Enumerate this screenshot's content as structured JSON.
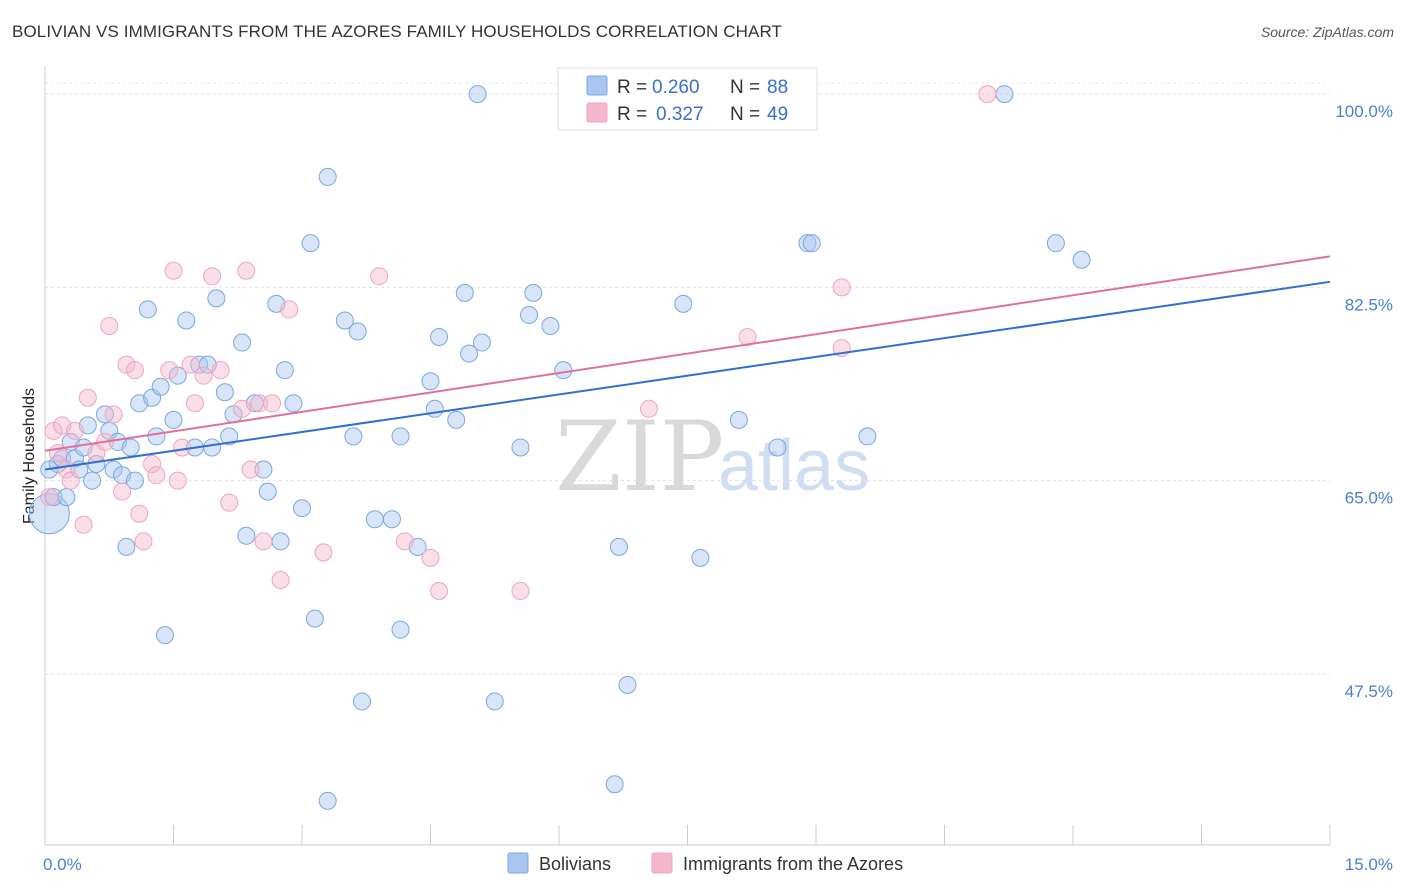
{
  "header": {
    "title": "BOLIVIAN VS IMMIGRANTS FROM THE AZORES FAMILY HOUSEHOLDS CORRELATION CHART",
    "source": "Source: ZipAtlas.com"
  },
  "watermark": {
    "zip": "ZIP",
    "atlas": "atlas"
  },
  "legend": {
    "items": [
      {
        "r_label": "R =",
        "r_value": "0.260",
        "n_label": "N =",
        "n_value": "88",
        "color": "#a9c6f0"
      },
      {
        "r_label": "R =",
        "r_value": "0.327",
        "n_label": "N =",
        "n_value": "49",
        "color": "#f5b8cb"
      }
    ]
  },
  "chart_data": {
    "type": "scatter",
    "title": "BOLIVIAN VS IMMIGRANTS FROM THE AZORES FAMILY HOUSEHOLDS CORRELATION CHART",
    "ylabel": "Family Households",
    "xlabel": "",
    "xlim": [
      0,
      15
    ],
    "ylim": [
      32,
      102
    ],
    "x_tick_labels": [
      "0.0%",
      "15.0%"
    ],
    "y_ticks": [
      47.5,
      65.0,
      82.5,
      100.0
    ],
    "y_tick_labels": [
      "47.5%",
      "65.0%",
      "82.5%",
      "100.0%"
    ],
    "grid": true,
    "legend_position": "top-center",
    "series": [
      {
        "name": "Bolivians",
        "color": "#7aa6e6",
        "line_color": "#2f6fd0",
        "trend": {
          "x": [
            0,
            15
          ],
          "y": [
            66.0,
            83.0
          ]
        },
        "points": [
          [
            0.05,
            62.0
          ],
          [
            0.1,
            63.5
          ],
          [
            0.15,
            66.5
          ],
          [
            0.2,
            67.0
          ],
          [
            0.25,
            63.5
          ],
          [
            0.3,
            68.5
          ],
          [
            0.35,
            67.0
          ],
          [
            0.45,
            68.0
          ],
          [
            0.5,
            70.0
          ],
          [
            0.55,
            65.0
          ],
          [
            0.6,
            66.5
          ],
          [
            0.7,
            71.0
          ],
          [
            0.75,
            69.5
          ],
          [
            0.8,
            66.0
          ],
          [
            0.85,
            68.5
          ],
          [
            0.9,
            65.5
          ],
          [
            0.95,
            59.0
          ],
          [
            1.05,
            65.0
          ],
          [
            1.1,
            72.0
          ],
          [
            1.2,
            80.5
          ],
          [
            1.25,
            72.5
          ],
          [
            1.3,
            69.0
          ],
          [
            1.35,
            73.5
          ],
          [
            1.4,
            51.0
          ],
          [
            1.5,
            70.5
          ],
          [
            1.55,
            74.5
          ],
          [
            1.65,
            79.5
          ],
          [
            1.75,
            68.0
          ],
          [
            1.8,
            75.5
          ],
          [
            1.9,
            75.5
          ],
          [
            1.95,
            68.0
          ],
          [
            2.0,
            81.5
          ],
          [
            2.1,
            73.0
          ],
          [
            2.15,
            69.0
          ],
          [
            2.2,
            71.0
          ],
          [
            2.3,
            77.5
          ],
          [
            2.35,
            60.0
          ],
          [
            2.45,
            72.0
          ],
          [
            2.55,
            66.0
          ],
          [
            2.6,
            64.0
          ],
          [
            2.7,
            81.0
          ],
          [
            2.75,
            59.5
          ],
          [
            2.8,
            75.0
          ],
          [
            2.9,
            72.0
          ],
          [
            3.0,
            62.5
          ],
          [
            3.1,
            86.5
          ],
          [
            3.15,
            52.5
          ],
          [
            3.3,
            92.5
          ],
          [
            3.3,
            36.0
          ],
          [
            3.5,
            79.5
          ],
          [
            3.6,
            69.0
          ],
          [
            3.65,
            78.5
          ],
          [
            3.7,
            45.0
          ],
          [
            3.85,
            61.5
          ],
          [
            4.05,
            61.5
          ],
          [
            4.15,
            69.0
          ],
          [
            4.15,
            51.5
          ],
          [
            4.35,
            59.0
          ],
          [
            4.5,
            74.0
          ],
          [
            4.55,
            71.5
          ],
          [
            4.6,
            78.0
          ],
          [
            4.8,
            70.5
          ],
          [
            4.9,
            82.0
          ],
          [
            4.95,
            76.5
          ],
          [
            5.05,
            100.0
          ],
          [
            5.1,
            77.5
          ],
          [
            5.25,
            45.0
          ],
          [
            5.55,
            68.0
          ],
          [
            5.65,
            80.0
          ],
          [
            5.7,
            82.0
          ],
          [
            5.9,
            79.0
          ],
          [
            6.05,
            75.0
          ],
          [
            6.65,
            37.5
          ],
          [
            6.7,
            59.0
          ],
          [
            6.8,
            46.5
          ],
          [
            7.45,
            81.0
          ],
          [
            7.65,
            58.0
          ],
          [
            8.1,
            70.5
          ],
          [
            8.55,
            68.0
          ],
          [
            8.9,
            86.5
          ],
          [
            8.95,
            86.5
          ],
          [
            9.6,
            69.0
          ],
          [
            11.2,
            100.0
          ],
          [
            11.8,
            86.5
          ],
          [
            12.1,
            85.0
          ],
          [
            0.05,
            66.0
          ],
          [
            0.4,
            66.0
          ],
          [
            1.0,
            68.0
          ]
        ]
      },
      {
        "name": "Immigrants from the Azores",
        "color": "#f0a4bd",
        "line_color": "#e0709a",
        "trend": {
          "x": [
            0,
            15
          ],
          "y": [
            67.7,
            85.3
          ]
        },
        "points": [
          [
            0.05,
            63.5
          ],
          [
            0.1,
            69.5
          ],
          [
            0.15,
            67.5
          ],
          [
            0.2,
            70.0
          ],
          [
            0.25,
            66.0
          ],
          [
            0.3,
            65.0
          ],
          [
            0.35,
            69.5
          ],
          [
            0.45,
            61.0
          ],
          [
            0.5,
            72.5
          ],
          [
            0.6,
            67.5
          ],
          [
            0.7,
            68.5
          ],
          [
            0.75,
            79.0
          ],
          [
            0.8,
            71.0
          ],
          [
            0.95,
            75.5
          ],
          [
            1.05,
            75.0
          ],
          [
            1.1,
            62.0
          ],
          [
            1.15,
            59.5
          ],
          [
            1.25,
            66.5
          ],
          [
            1.3,
            65.5
          ],
          [
            1.45,
            75.0
          ],
          [
            1.5,
            84.0
          ],
          [
            1.55,
            65.0
          ],
          [
            1.6,
            68.0
          ],
          [
            1.7,
            75.5
          ],
          [
            1.75,
            72.0
          ],
          [
            1.85,
            74.5
          ],
          [
            1.95,
            83.5
          ],
          [
            2.05,
            75.0
          ],
          [
            2.15,
            63.0
          ],
          [
            2.3,
            71.5
          ],
          [
            2.35,
            84.0
          ],
          [
            2.4,
            66.0
          ],
          [
            2.5,
            72.0
          ],
          [
            2.55,
            59.5
          ],
          [
            2.65,
            72.0
          ],
          [
            2.75,
            56.0
          ],
          [
            2.85,
            80.5
          ],
          [
            3.25,
            58.5
          ],
          [
            3.9,
            83.5
          ],
          [
            4.2,
            59.5
          ],
          [
            4.5,
            58.0
          ],
          [
            4.6,
            55.0
          ],
          [
            5.55,
            55.0
          ],
          [
            7.05,
            71.5
          ],
          [
            8.2,
            78.0
          ],
          [
            9.3,
            82.5
          ],
          [
            9.3,
            77.0
          ],
          [
            11.0,
            100.0
          ],
          [
            0.9,
            64.0
          ]
        ]
      }
    ]
  },
  "bottom_legend": {
    "items": [
      {
        "label": "Bolivians",
        "color": "#a9c6f0"
      },
      {
        "label": "Immigrants from the Azores",
        "color": "#f5b8cb"
      }
    ]
  }
}
